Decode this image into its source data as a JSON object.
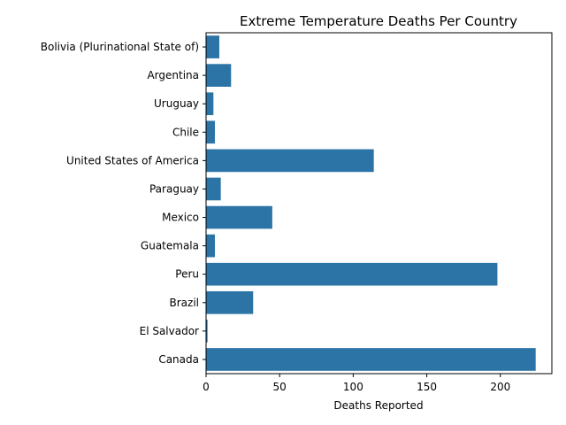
{
  "chart_data": {
    "type": "bar",
    "orientation": "horizontal",
    "title": "Extreme Temperature Deaths Per Country",
    "xlabel": "Deaths Reported",
    "ylabel": "",
    "xlim": [
      0,
      235
    ],
    "xticks": [
      0,
      50,
      100,
      150,
      200
    ],
    "categories": [
      "Bolivia (Plurinational State of)",
      "Argentina",
      "Uruguay",
      "Chile",
      "United States of America",
      "Paraguay",
      "Mexico",
      "Guatemala",
      "Peru",
      "Brazil",
      "El Salvador",
      "Canada"
    ],
    "values": [
      9,
      17,
      5,
      6,
      114,
      10,
      45,
      6,
      198,
      32,
      1,
      224
    ],
    "bar_color": "#2c73a6",
    "grid": false,
    "legend": "none"
  }
}
